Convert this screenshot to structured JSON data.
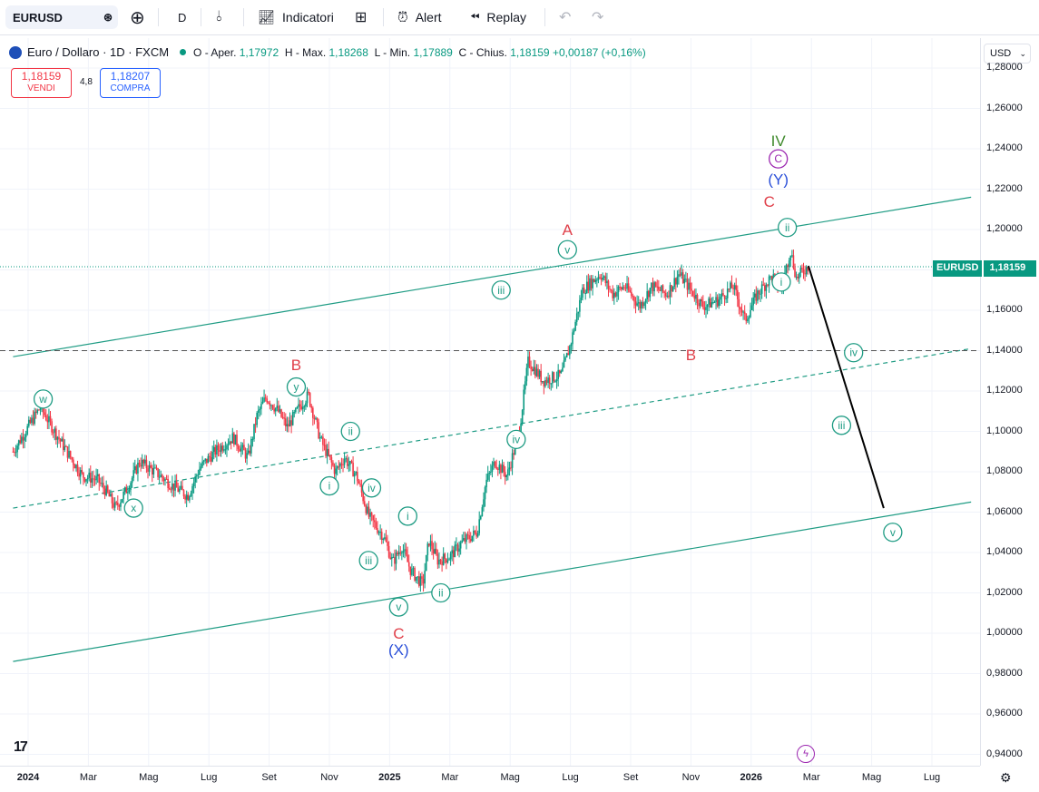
{
  "toolbar": {
    "symbol": "EURUSD",
    "interval": "D",
    "indicators_label": "Indicatori",
    "alert_label": "Alert",
    "replay_label": "Replay"
  },
  "legend": {
    "title": "Euro / Dollaro · 1D · FXCM",
    "open_label": "O - Aper.",
    "open": "1,17972",
    "high_label": "H - Max.",
    "high": "1,18268",
    "low_label": "L - Min.",
    "low": "1,17889",
    "close_label": "C - Chius.",
    "close": "1,18159",
    "change": "+0,00187 (+0,16%)"
  },
  "trade": {
    "sell_price": "1,18159",
    "sell_label": "VENDI",
    "spread": "4,8",
    "buy_price": "1,18207",
    "buy_label": "COMPRA"
  },
  "currency": "USD",
  "price_tag": {
    "symbol": "EURUSD",
    "value": "1,18159"
  },
  "colors": {
    "up": "#089981",
    "down": "#f23645",
    "wave_green": "#1f9c84",
    "wave_red": "#e0404a",
    "wave_blue": "#2a4fd8",
    "wave_purple": "#9c27b0",
    "wave_olive": "#3f8a2c"
  },
  "chart_data": {
    "type": "line",
    "title": "Euro / Dollaro · 1D · FXCM",
    "ylim": [
      0.93,
      1.29
    ],
    "y_ticks": [
      "1,28000",
      "1,26000",
      "1,24000",
      "1,22000",
      "1,20000",
      "1,18000",
      "1,16000",
      "1,14000",
      "1,12000",
      "1,10000",
      "1,08000",
      "1,06000",
      "1,04000",
      "1,02000",
      "1,00000",
      "0,98000",
      "0,96000",
      "0,94000"
    ],
    "y_tick_values": [
      1.28,
      1.26,
      1.24,
      1.22,
      1.2,
      1.18,
      1.16,
      1.14,
      1.12,
      1.1,
      1.08,
      1.06,
      1.04,
      1.02,
      1.0,
      0.98,
      0.96,
      0.94
    ],
    "x_ticks": [
      "2024",
      "Mar",
      "Mag",
      "Lug",
      "Set",
      "Nov",
      "2025",
      "Mar",
      "Mag",
      "Lug",
      "Set",
      "Nov",
      "2026",
      "Mar",
      "Mag",
      "Lug"
    ],
    "x_tick_months": [
      0,
      2,
      4,
      6,
      8,
      10,
      12,
      14,
      16,
      18,
      20,
      22,
      24,
      26,
      28,
      30
    ],
    "x_tick_bold": [
      true,
      false,
      false,
      false,
      false,
      false,
      true,
      false,
      false,
      false,
      false,
      false,
      true,
      false,
      false,
      false
    ],
    "series": [
      {
        "name": "EURUSD",
        "points": [
          [
            -0.5,
            1.09
          ],
          [
            0.4,
            1.112
          ],
          [
            1.2,
            1.092
          ],
          [
            1.8,
            1.078
          ],
          [
            2.3,
            1.076
          ],
          [
            2.6,
            1.07
          ],
          [
            2.9,
            1.062
          ],
          [
            3.3,
            1.072
          ],
          [
            3.7,
            1.085
          ],
          [
            4.3,
            1.079
          ],
          [
            4.8,
            1.073
          ],
          [
            5.3,
            1.068
          ],
          [
            5.7,
            1.082
          ],
          [
            6.2,
            1.09
          ],
          [
            6.8,
            1.097
          ],
          [
            7.3,
            1.087
          ],
          [
            7.6,
            1.108
          ],
          [
            7.9,
            1.117
          ],
          [
            8.3,
            1.11
          ],
          [
            8.6,
            1.102
          ],
          [
            9.0,
            1.112
          ],
          [
            9.3,
            1.118
          ],
          [
            9.7,
            1.096
          ],
          [
            10.2,
            1.08
          ],
          [
            10.5,
            1.087
          ],
          [
            10.9,
            1.078
          ],
          [
            11.3,
            1.058
          ],
          [
            11.8,
            1.048
          ],
          [
            12.1,
            1.035
          ],
          [
            12.4,
            1.043
          ],
          [
            12.7,
            1.031
          ],
          [
            13.1,
            1.024
          ],
          [
            13.3,
            1.046
          ],
          [
            13.6,
            1.036
          ],
          [
            14.0,
            1.038
          ],
          [
            14.4,
            1.045
          ],
          [
            14.9,
            1.05
          ],
          [
            15.2,
            1.075
          ],
          [
            15.5,
            1.085
          ],
          [
            15.9,
            1.078
          ],
          [
            16.3,
            1.1
          ],
          [
            16.6,
            1.135
          ],
          [
            17.1,
            1.125
          ],
          [
            17.7,
            1.128
          ],
          [
            18.0,
            1.143
          ],
          [
            18.4,
            1.17
          ],
          [
            19.0,
            1.178
          ],
          [
            19.4,
            1.168
          ],
          [
            19.8,
            1.172
          ],
          [
            20.3,
            1.162
          ],
          [
            20.7,
            1.172
          ],
          [
            21.2,
            1.168
          ],
          [
            21.6,
            1.178
          ],
          [
            22.0,
            1.17
          ],
          [
            22.4,
            1.162
          ],
          [
            22.9,
            1.165
          ],
          [
            23.4,
            1.172
          ],
          [
            23.8,
            1.155
          ],
          [
            24.2,
            1.168
          ],
          [
            24.7,
            1.177
          ],
          [
            25.0,
            1.17
          ],
          [
            25.3,
            1.19
          ],
          [
            25.5,
            1.176
          ],
          [
            25.9,
            1.182
          ]
        ]
      }
    ],
    "projection": [
      [
        25.9,
        1.182
      ],
      [
        28.4,
        1.062
      ]
    ],
    "horizontal_level": 1.14,
    "channels": [
      {
        "name": "upper",
        "from": [
          -0.5,
          1.137
        ],
        "to": [
          31.3,
          1.216
        ],
        "style": "solid"
      },
      {
        "name": "lower",
        "from": [
          -0.5,
          0.986
        ],
        "to": [
          31.3,
          1.065
        ],
        "style": "solid"
      },
      {
        "name": "middle",
        "from": [
          -0.5,
          1.062
        ],
        "to": [
          31.3,
          1.141
        ],
        "style": "dashed"
      }
    ],
    "annotations": [
      {
        "text": "w",
        "x": 0.5,
        "y": 1.116,
        "style": "circle",
        "color": "green"
      },
      {
        "text": "x",
        "x": 3.5,
        "y": 1.062,
        "style": "circle",
        "color": "green"
      },
      {
        "text": "B",
        "x": 8.9,
        "y": 1.133,
        "style": "plain",
        "color": "red"
      },
      {
        "text": "y",
        "x": 8.9,
        "y": 1.122,
        "style": "circle",
        "color": "green"
      },
      {
        "text": "ii",
        "x": 10.7,
        "y": 1.1,
        "style": "circle",
        "color": "green"
      },
      {
        "text": "i",
        "x": 10.0,
        "y": 1.073,
        "style": "circle",
        "color": "green"
      },
      {
        "text": "iv",
        "x": 11.4,
        "y": 1.072,
        "style": "circle",
        "color": "green"
      },
      {
        "text": "iii",
        "x": 11.3,
        "y": 1.036,
        "style": "circle",
        "color": "green"
      },
      {
        "text": "i",
        "x": 12.6,
        "y": 1.058,
        "style": "circle",
        "color": "green"
      },
      {
        "text": "ii",
        "x": 13.7,
        "y": 1.02,
        "style": "circle",
        "color": "green"
      },
      {
        "text": "v",
        "x": 12.3,
        "y": 1.013,
        "style": "circle",
        "color": "green"
      },
      {
        "text": "C",
        "x": 12.3,
        "y": 1.0,
        "style": "plain",
        "color": "red"
      },
      {
        "text": "(X)",
        "x": 12.3,
        "y": 0.992,
        "style": "plain",
        "color": "blue"
      },
      {
        "text": "iv",
        "x": 16.2,
        "y": 1.096,
        "style": "circle",
        "color": "green"
      },
      {
        "text": "iii",
        "x": 15.7,
        "y": 1.17,
        "style": "circle",
        "color": "green"
      },
      {
        "text": "A",
        "x": 17.9,
        "y": 1.2,
        "style": "plain",
        "color": "red"
      },
      {
        "text": "v",
        "x": 17.9,
        "y": 1.19,
        "style": "circle",
        "color": "green"
      },
      {
        "text": "B",
        "x": 22.0,
        "y": 1.138,
        "style": "plain",
        "color": "red"
      },
      {
        "text": "IV",
        "x": 24.9,
        "y": 1.244,
        "style": "plain",
        "color": "olive"
      },
      {
        "text": "C",
        "x": 24.9,
        "y": 1.235,
        "style": "circle",
        "color": "purple"
      },
      {
        "text": "(Y)",
        "x": 24.9,
        "y": 1.225,
        "style": "plain",
        "color": "blue"
      },
      {
        "text": "C",
        "x": 24.6,
        "y": 1.214,
        "style": "plain",
        "color": "red"
      },
      {
        "text": "ii",
        "x": 25.2,
        "y": 1.201,
        "style": "circle",
        "color": "green"
      },
      {
        "text": "i",
        "x": 25.0,
        "y": 1.174,
        "style": "circle",
        "color": "green"
      },
      {
        "text": "iv",
        "x": 27.4,
        "y": 1.139,
        "style": "circle",
        "color": "green"
      },
      {
        "text": "iii",
        "x": 27.0,
        "y": 1.103,
        "style": "circle",
        "color": "green"
      },
      {
        "text": "v",
        "x": 28.7,
        "y": 1.05,
        "style": "circle",
        "color": "green"
      }
    ]
  }
}
